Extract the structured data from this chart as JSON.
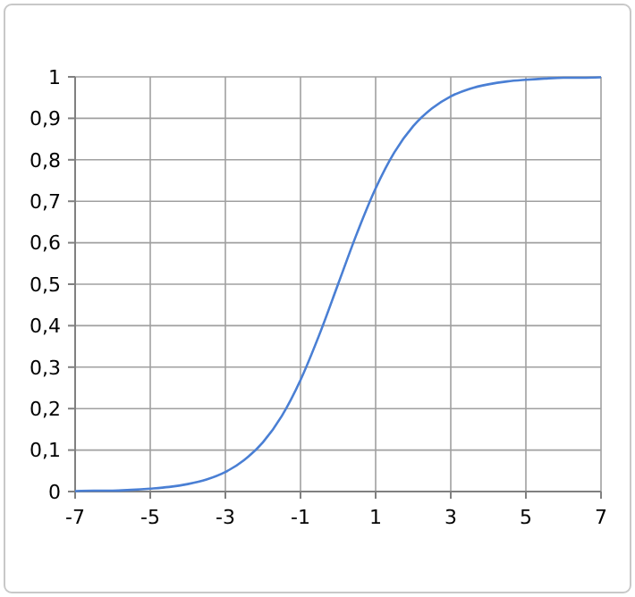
{
  "chart_data": {
    "type": "line",
    "x": [
      -7,
      -6.5,
      -6,
      -5.5,
      -5,
      -4.5,
      -4,
      -3.5,
      -3,
      -2.5,
      -2,
      -1.5,
      -1,
      -0.5,
      0,
      0.5,
      1,
      1.5,
      2,
      2.5,
      3,
      3.5,
      4,
      4.5,
      5,
      5.5,
      6,
      6.5,
      7
    ],
    "series": [
      {
        "color": "#4a7fd4",
        "values": [
          0.001,
          0.002,
          0.002,
          0.004,
          0.007,
          0.011,
          0.018,
          0.029,
          0.047,
          0.076,
          0.119,
          0.182,
          0.269,
          0.378,
          0.5,
          0.622,
          0.731,
          0.818,
          0.881,
          0.924,
          0.953,
          0.971,
          0.982,
          0.989,
          0.993,
          0.996,
          0.998,
          0.998,
          0.999
        ]
      }
    ],
    "xlim": [
      -7,
      7
    ],
    "xticks": [
      -7,
      -5,
      -3,
      -1,
      1,
      3,
      5,
      7
    ],
    "ylim": [
      0,
      1
    ],
    "yticks": [
      0,
      {
        "value": 0.1,
        "label": "0,1"
      },
      {
        "value": 0.2,
        "label": "0,2"
      },
      {
        "value": 0.3,
        "label": "0,3"
      },
      {
        "value": 0.4,
        "label": "0,4"
      },
      {
        "value": 0.5,
        "label": "0,5"
      },
      {
        "value": 0.6,
        "label": "0,6"
      },
      {
        "value": 0.7,
        "label": "0,7"
      },
      {
        "value": 0.8,
        "label": "0,8"
      },
      {
        "value": 0.9,
        "label": "0,9"
      },
      1
    ],
    "grid": true,
    "marker": "none",
    "line_style": "solid"
  }
}
